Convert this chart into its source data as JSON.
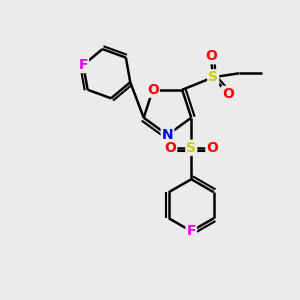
{
  "background_color": "#ebebeb",
  "bond_color": "#000000",
  "bond_width": 1.8,
  "colors": {
    "F": "#ee00ee",
    "O": "#ff0000",
    "N": "#0000ff",
    "S": "#cccc00",
    "C": "#000000"
  },
  "font_size": 10,
  "xlim": [
    -2.8,
    2.8
  ],
  "ylim": [
    -3.5,
    2.5
  ]
}
